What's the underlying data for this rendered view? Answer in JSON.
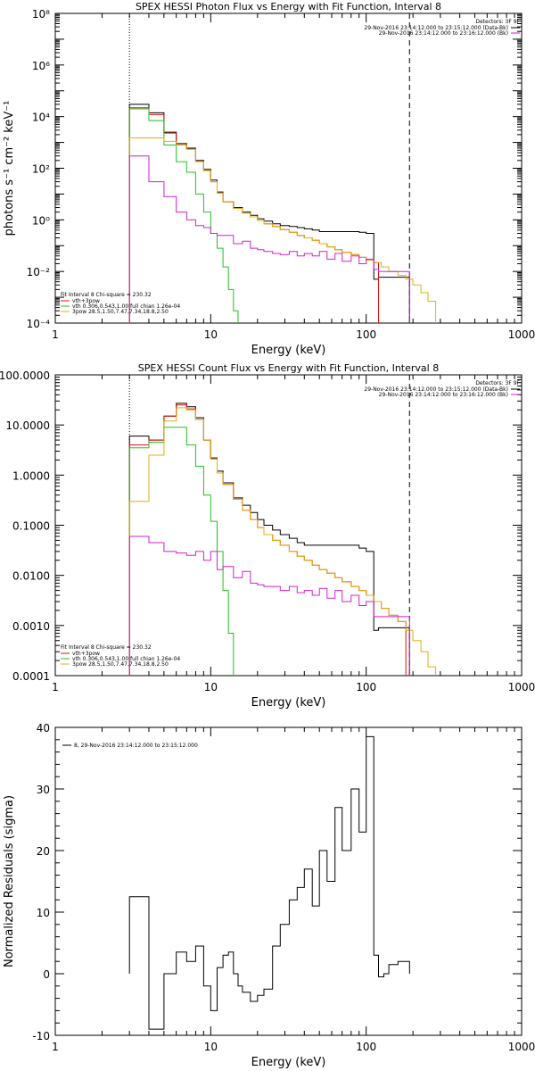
{
  "chart_data": [
    {
      "type": "line",
      "title": "SPEX HESSI Photon Flux vs Energy with Fit Function, Interval 8",
      "xlabel": "Energy (keV)",
      "ylabel": "photons s⁻¹ cm⁻² keV⁻¹",
      "xscale": "log",
      "yscale": "log",
      "xlim": [
        1,
        1000
      ],
      "ylim": [
        0.0001,
        100000000
      ],
      "xticks": [
        1,
        10,
        100,
        1000
      ],
      "xtick_labels": [
        "1",
        "10",
        "100",
        "1000"
      ],
      "yticks": [
        0.0001,
        0.01,
        1,
        100,
        10000,
        1000000
      ],
      "ytick_labels": [
        "10⁻⁴",
        "10⁻²",
        "10⁰",
        "10²",
        "10⁴",
        "10⁶"
      ],
      "ytick_top_label": "10⁸",
      "vlines": [
        {
          "x": 3,
          "style": "dotted"
        },
        {
          "x": 190,
          "style": "dashed"
        }
      ],
      "legend_top_right": {
        "heading": "Detectors: 3F 9F",
        "entries": [
          {
            "label": "29-Nov-2016 23:14:12.000 to 23:15:12.000 (Data-Bk)",
            "color": "#000000"
          },
          {
            "label": "29-Nov-2016 23:14:12.000 to 23:16:12.000 (Bk)",
            "color": "#d21fcf"
          }
        ]
      },
      "legend_bottom_left": {
        "heading": "Fit Interval 8   Chi-square = 230.32",
        "entries": [
          {
            "label": "vth+3pow",
            "color": "#e01010"
          },
          {
            "label": "vth 0.306,0.543,1.00  full chian 1.26e-04",
            "color": "#20c020"
          },
          {
            "label": "3pow 28.5,1.50,7.47,7.34,18.8,2.50",
            "color": "#e0b010"
          }
        ]
      },
      "series": [
        {
          "color": "#000000",
          "edges": [
            3,
            4,
            5,
            6,
            7,
            8,
            9,
            10,
            11,
            12,
            14,
            16,
            18,
            20,
            22,
            25,
            28,
            32,
            36,
            40,
            45,
            50,
            56,
            63,
            70,
            80,
            90,
            100,
            112,
            120,
            190
          ],
          "values": [
            30000,
            14000,
            2500,
            900,
            600,
            200,
            90,
            35,
            12,
            5,
            3,
            2,
            1.5,
            1.1,
            0.9,
            0.7,
            0.6,
            0.55,
            0.5,
            0.45,
            0.4,
            0.35,
            0.35,
            0.35,
            0.35,
            0.35,
            0.33,
            0.3,
            0.005,
            0.006
          ]
        },
        {
          "color": "#e01010",
          "edges": [
            3,
            4,
            5,
            6,
            7,
            8,
            9,
            10,
            11,
            12,
            14,
            16,
            18,
            20,
            22,
            25,
            28,
            32,
            36,
            40,
            45,
            50,
            56,
            63,
            70,
            80,
            90,
            100,
            112,
            120
          ],
          "values": [
            22000,
            12000,
            2300,
            800,
            550,
            180,
            80,
            30,
            11,
            5,
            2.8,
            1.8,
            1.3,
            0.95,
            0.7,
            0.55,
            0.42,
            0.33,
            0.25,
            0.2,
            0.16,
            0.12,
            0.09,
            0.07,
            0.055,
            0.045,
            0.035,
            0.028,
            0.022
          ]
        },
        {
          "color": "#20c020",
          "edges": [
            3,
            4,
            5,
            6,
            7,
            8,
            9,
            10,
            11,
            12,
            13,
            14,
            15
          ],
          "values": [
            20000,
            7000,
            800,
            180,
            70,
            10,
            2,
            0.3,
            0.08,
            0.015,
            0.002,
            0.0003
          ]
        },
        {
          "color": "#e0b010",
          "edges": [
            3,
            4,
            5,
            6,
            7,
            8,
            9,
            10,
            11,
            12,
            14,
            16,
            18,
            20,
            22,
            25,
            28,
            32,
            36,
            40,
            45,
            50,
            56,
            63,
            70,
            80,
            90,
            100,
            112,
            125,
            140,
            160,
            180,
            200,
            225,
            250,
            280
          ],
          "values": [
            1500,
            1500,
            1100,
            800,
            550,
            180,
            80,
            30,
            11,
            5,
            2.8,
            1.8,
            1.3,
            0.95,
            0.7,
            0.55,
            0.42,
            0.33,
            0.25,
            0.2,
            0.16,
            0.12,
            0.09,
            0.07,
            0.055,
            0.045,
            0.035,
            0.028,
            0.022,
            0.015,
            0.01,
            0.007,
            0.005,
            0.003,
            0.0015,
            0.0007
          ]
        },
        {
          "color": "#d21fcf",
          "edges": [
            3,
            4,
            5,
            6,
            7,
            8,
            9,
            10,
            11,
            12,
            14,
            16,
            18,
            20,
            22,
            25,
            28,
            32,
            36,
            40,
            45,
            50,
            56,
            63,
            70,
            80,
            90,
            100,
            112,
            120,
            190
          ],
          "values": [
            300,
            30,
            8,
            2,
            1,
            0.6,
            0.5,
            0.3,
            0.25,
            0.25,
            0.12,
            0.15,
            0.08,
            0.07,
            0.06,
            0.05,
            0.045,
            0.06,
            0.04,
            0.05,
            0.04,
            0.06,
            0.03,
            0.05,
            0.025,
            0.04,
            0.02,
            0.03,
            0.012,
            0.01
          ]
        }
      ]
    },
    {
      "type": "line",
      "title": "SPEX HESSI Count Flux vs Energy with Fit Function, Interval 8",
      "xlabel": "Energy (keV)",
      "ylabel": "",
      "xscale": "log",
      "yscale": "log",
      "xlim": [
        1,
        1000
      ],
      "ylim": [
        0.0001,
        100
      ],
      "xticks": [
        1,
        10,
        100,
        1000
      ],
      "xtick_labels": [
        "1",
        "10",
        "100",
        "1000"
      ],
      "yticks": [
        0.0001,
        0.001,
        0.01,
        0.1,
        1,
        10,
        100
      ],
      "ytick_labels": [
        "0.0001",
        "0.0010",
        "0.0100",
        "0.1000",
        "1.0000",
        "10.0000",
        "100.0000"
      ],
      "vlines": [
        {
          "x": 3,
          "style": "dotted"
        },
        {
          "x": 190,
          "style": "dashed"
        }
      ],
      "legend_top_right": {
        "heading": "Detectors: 3F 9F",
        "entries": [
          {
            "label": "29-Nov-2016 23:14:12.000 to 23:15:12.000 (Data-Bk)",
            "color": "#000000"
          },
          {
            "label": "29-Nov-2016 23:14:12.000 to 23:16:12.000 (Bk)",
            "color": "#d21fcf"
          }
        ]
      },
      "legend_bottom_left": {
        "heading": "Fit Interval 8   Chi-square = 230.32",
        "entries": [
          {
            "label": "vth+3pow",
            "color": "#e01010"
          },
          {
            "label": "vth 0.306,0.543,1.00  full chian 1.26e-04",
            "color": "#20c020"
          },
          {
            "label": "3pow 28.5,1.50,7.47,7.34,18.8,2.50",
            "color": "#e0b010"
          }
        ]
      },
      "series": [
        {
          "color": "#000000",
          "edges": [
            3,
            4,
            5,
            6,
            7,
            8,
            9,
            10,
            11,
            12,
            14,
            16,
            18,
            20,
            22,
            25,
            28,
            32,
            36,
            40,
            45,
            50,
            56,
            63,
            70,
            80,
            90,
            100,
            112,
            120,
            190
          ],
          "values": [
            6,
            5,
            15,
            27,
            23,
            14,
            5,
            2.2,
            1.2,
            0.7,
            0.35,
            0.25,
            0.18,
            0.13,
            0.1,
            0.08,
            0.065,
            0.055,
            0.045,
            0.04,
            0.04,
            0.04,
            0.04,
            0.04,
            0.04,
            0.04,
            0.035,
            0.03,
            0.0008,
            0.0009
          ]
        },
        {
          "color": "#e01010",
          "edges": [
            3,
            4,
            5,
            6,
            7,
            8,
            9,
            10,
            11,
            12,
            14,
            16,
            18,
            20,
            22,
            25,
            28,
            32,
            36,
            40,
            45,
            50,
            56,
            63,
            70,
            80,
            90,
            100,
            112,
            125,
            140,
            160,
            180
          ],
          "values": [
            4,
            5,
            15,
            25,
            21,
            13,
            5,
            2.1,
            1.1,
            0.65,
            0.33,
            0.2,
            0.13,
            0.09,
            0.065,
            0.05,
            0.04,
            0.03,
            0.024,
            0.02,
            0.016,
            0.013,
            0.011,
            0.009,
            0.0075,
            0.006,
            0.005,
            0.004,
            0.003,
            0.0022,
            0.0016,
            0.0012
          ]
        },
        {
          "color": "#20c020",
          "edges": [
            3,
            4,
            5,
            6,
            7,
            8,
            9,
            10,
            11,
            12,
            13,
            14
          ],
          "values": [
            3.5,
            4.5,
            9,
            9,
            4,
            1.5,
            0.4,
            0.12,
            0.03,
            0.005,
            0.0007
          ]
        },
        {
          "color": "#e0b010",
          "edges": [
            3,
            4,
            5,
            6,
            7,
            8,
            9,
            10,
            11,
            12,
            14,
            16,
            18,
            20,
            22,
            25,
            28,
            32,
            36,
            40,
            45,
            50,
            56,
            63,
            70,
            80,
            90,
            100,
            112,
            125,
            140,
            160,
            180,
            200,
            225,
            250,
            280
          ],
          "values": [
            0.3,
            2.5,
            12,
            22,
            20,
            13,
            5,
            2.1,
            1.1,
            0.65,
            0.33,
            0.2,
            0.13,
            0.09,
            0.065,
            0.05,
            0.04,
            0.03,
            0.024,
            0.02,
            0.016,
            0.013,
            0.011,
            0.009,
            0.0075,
            0.006,
            0.005,
            0.004,
            0.003,
            0.0022,
            0.0016,
            0.0012,
            0.0008,
            0.0005,
            0.0003,
            0.00015
          ]
        },
        {
          "color": "#d21fcf",
          "edges": [
            3,
            4,
            5,
            6,
            7,
            8,
            9,
            10,
            11,
            12,
            14,
            16,
            18,
            20,
            22,
            25,
            28,
            32,
            36,
            40,
            45,
            50,
            56,
            63,
            70,
            80,
            90,
            100,
            112,
            120,
            190
          ],
          "values": [
            0.06,
            0.045,
            0.03,
            0.028,
            0.025,
            0.03,
            0.02,
            0.03,
            0.013,
            0.015,
            0.009,
            0.012,
            0.007,
            0.0065,
            0.006,
            0.006,
            0.005,
            0.006,
            0.0045,
            0.005,
            0.004,
            0.0055,
            0.0035,
            0.005,
            0.003,
            0.004,
            0.0025,
            0.003,
            0.0015,
            0.0015
          ]
        }
      ]
    },
    {
      "type": "line",
      "title": "",
      "xlabel": "Energy (keV)",
      "ylabel": "Normalized Residuals (sigma)",
      "xscale": "log",
      "yscale": "linear",
      "xlim": [
        1,
        1000
      ],
      "ylim": [
        -10,
        40
      ],
      "xticks": [
        1,
        10,
        100,
        1000
      ],
      "xtick_labels": [
        "1",
        "10",
        "100",
        "1000"
      ],
      "yticks": [
        -10,
        0,
        10,
        20,
        30,
        40
      ],
      "ytick_labels": [
        "-10",
        "0",
        "10",
        "20",
        "30",
        "40"
      ],
      "legend_top_left": {
        "entries": [
          {
            "label": "8, 29-Nov-2016 23:14:12.000 to 23:15:12.000",
            "color": "#000000"
          }
        ]
      },
      "series": [
        {
          "color": "#000000",
          "edges": [
            3,
            4,
            5,
            6,
            7,
            8,
            9,
            10,
            11,
            12,
            13,
            14,
            15,
            16,
            18,
            20,
            22,
            25,
            28,
            32,
            36,
            40,
            45,
            50,
            56,
            63,
            70,
            80,
            90,
            100,
            112,
            120,
            130,
            140,
            160,
            190
          ],
          "values": [
            12.5,
            -9,
            0,
            3.5,
            2,
            4.5,
            -2,
            -6,
            1,
            3,
            3.5,
            0,
            -2,
            -3,
            -4.5,
            -3.5,
            -2.5,
            4.5,
            8,
            12,
            14,
            17,
            11,
            20,
            15,
            27,
            20,
            30,
            23,
            38.5,
            3,
            -0.5,
            0,
            1.5,
            2
          ]
        }
      ]
    }
  ]
}
